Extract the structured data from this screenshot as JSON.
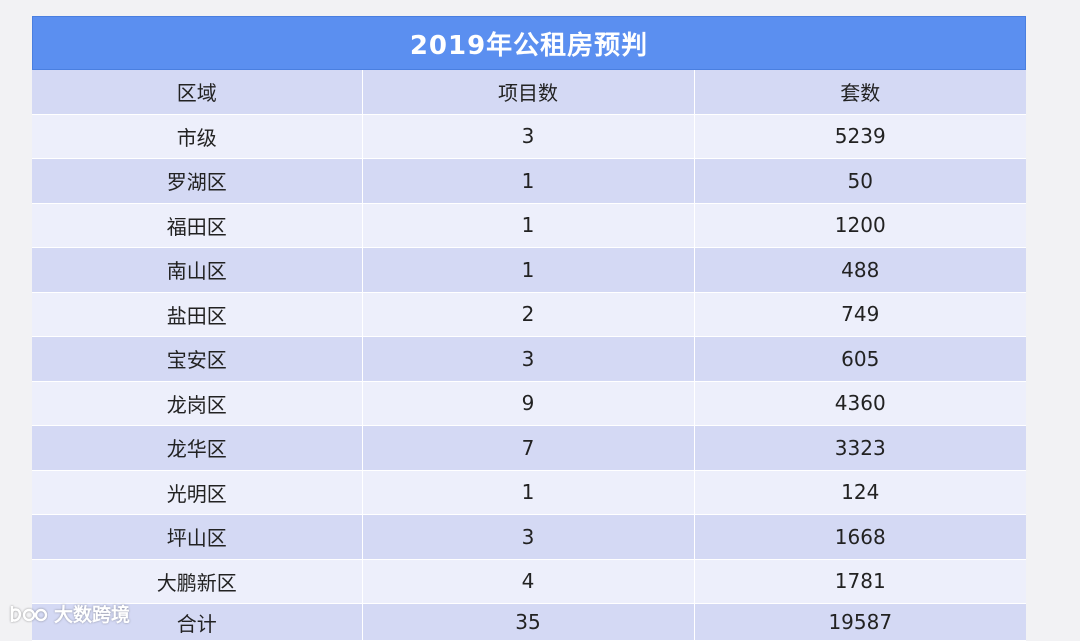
{
  "title": "2019年公租房预判",
  "columns": [
    "区域",
    "项目数",
    "套数"
  ],
  "rows": [
    [
      "市级",
      "3",
      "5239"
    ],
    [
      "罗湖区",
      "1",
      "50"
    ],
    [
      "福田区",
      "1",
      "1200"
    ],
    [
      "南山区",
      "1",
      "488"
    ],
    [
      "盐田区",
      "2",
      "749"
    ],
    [
      "宝安区",
      "3",
      "605"
    ],
    [
      "龙岗区",
      "9",
      "4360"
    ],
    [
      "龙华区",
      "7",
      "3323"
    ],
    [
      "光明区",
      "1",
      "124"
    ],
    [
      "坪山区",
      "3",
      "1668"
    ],
    [
      "大鹏新区",
      "4",
      "1781"
    ],
    [
      "合计",
      "35",
      "19587"
    ]
  ],
  "watermark": {
    "text": "大数跨境",
    "logo": "bdo-logo-icon"
  },
  "colors": {
    "title_bg": "#5b8ff0",
    "header_bg": "#d4d9f4",
    "row_light": "#edeffb",
    "row_dark": "#d4d9f4"
  }
}
